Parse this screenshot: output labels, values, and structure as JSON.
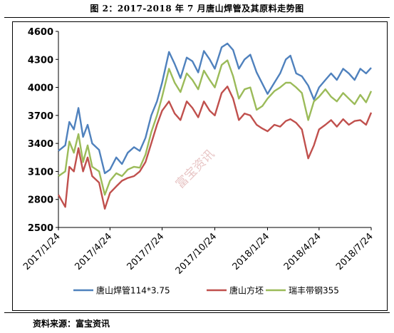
{
  "figure_title": "图 2：2017-2018 年 7 月唐山焊管及其原料走势图",
  "source_text": "资料来源：富宝资讯",
  "watermark": "富宝资讯",
  "chart_data": {
    "type": "line",
    "title": "图 2：2017-2018 年 7 月唐山焊管及其原料走势图",
    "ylim": [
      2500,
      4600
    ],
    "yticks": [
      2500,
      2800,
      3100,
      3400,
      3700,
      4000,
      4300,
      4600
    ],
    "xlim": [
      "2017-01-24",
      "2018-07-24"
    ],
    "xticks": [
      "2017/1/24",
      "2017/4/24",
      "2017/7/24",
      "2017/10/24",
      "2018/1/24",
      "2018/4/24",
      "2018/7/24"
    ],
    "grid": false,
    "legend_position": "bottom",
    "x": [
      "2017-01-24",
      "2017-02-05",
      "2017-02-12",
      "2017-02-20",
      "2017-02-28",
      "2017-03-08",
      "2017-03-16",
      "2017-03-24",
      "2017-04-05",
      "2017-04-15",
      "2017-04-24",
      "2017-05-05",
      "2017-05-15",
      "2017-05-25",
      "2017-06-05",
      "2017-06-15",
      "2017-06-25",
      "2017-07-05",
      "2017-07-15",
      "2017-07-24",
      "2017-08-05",
      "2017-08-15",
      "2017-08-25",
      "2017-09-05",
      "2017-09-15",
      "2017-09-25",
      "2017-10-05",
      "2017-10-15",
      "2017-10-24",
      "2017-11-05",
      "2017-11-15",
      "2017-11-25",
      "2017-12-05",
      "2017-12-15",
      "2017-12-25",
      "2018-01-05",
      "2018-01-15",
      "2018-01-24",
      "2018-02-05",
      "2018-02-15",
      "2018-02-25",
      "2018-03-05",
      "2018-03-15",
      "2018-03-25",
      "2018-04-05",
      "2018-04-15",
      "2018-04-24",
      "2018-05-05",
      "2018-05-15",
      "2018-05-25",
      "2018-06-05",
      "2018-06-15",
      "2018-06-25",
      "2018-07-05",
      "2018-07-15",
      "2018-07-24"
    ],
    "series": [
      {
        "name": "唐山焊管114*3.75",
        "color": "#4f81bd",
        "values": [
          3320,
          3380,
          3630,
          3550,
          3780,
          3470,
          3600,
          3400,
          3330,
          3080,
          3120,
          3250,
          3180,
          3300,
          3360,
          3320,
          3460,
          3700,
          3850,
          4050,
          4380,
          4250,
          4100,
          4320,
          4280,
          4160,
          4390,
          4300,
          4200,
          4430,
          4470,
          4400,
          4200,
          4300,
          4350,
          4160,
          4040,
          3930,
          4050,
          4150,
          4300,
          4340,
          4150,
          4120,
          4020,
          3870,
          4000,
          4080,
          4150,
          4080,
          4200,
          4150,
          4080,
          4200,
          4150,
          4210
        ]
      },
      {
        "name": "唐山方坯",
        "color": "#c0504d",
        "values": [
          2850,
          2720,
          3150,
          3100,
          3350,
          3100,
          3250,
          3050,
          2980,
          2700,
          2870,
          2940,
          3000,
          3030,
          3050,
          3100,
          3200,
          3400,
          3600,
          3750,
          3850,
          3720,
          3650,
          3850,
          3780,
          3680,
          3850,
          3750,
          3700,
          3940,
          4010,
          3880,
          3650,
          3720,
          3700,
          3600,
          3560,
          3530,
          3600,
          3580,
          3640,
          3660,
          3620,
          3550,
          3240,
          3380,
          3550,
          3600,
          3650,
          3580,
          3660,
          3600,
          3640,
          3650,
          3600,
          3730
        ]
      },
      {
        "name": "瑞丰带钢355",
        "color": "#9bbb59",
        "values": [
          3050,
          3100,
          3420,
          3300,
          3500,
          3200,
          3380,
          3150,
          3100,
          2850,
          3000,
          3080,
          3050,
          3120,
          3150,
          3140,
          3280,
          3520,
          3700,
          3900,
          4200,
          4050,
          3950,
          4150,
          4080,
          3980,
          4180,
          4080,
          4000,
          4240,
          4290,
          4120,
          3880,
          3980,
          4000,
          3760,
          3800,
          3880,
          3960,
          4000,
          4050,
          4050,
          4000,
          3940,
          3650,
          3850,
          3900,
          3980,
          3900,
          3850,
          3940,
          3880,
          3820,
          3920,
          3840,
          3960
        ]
      }
    ]
  }
}
